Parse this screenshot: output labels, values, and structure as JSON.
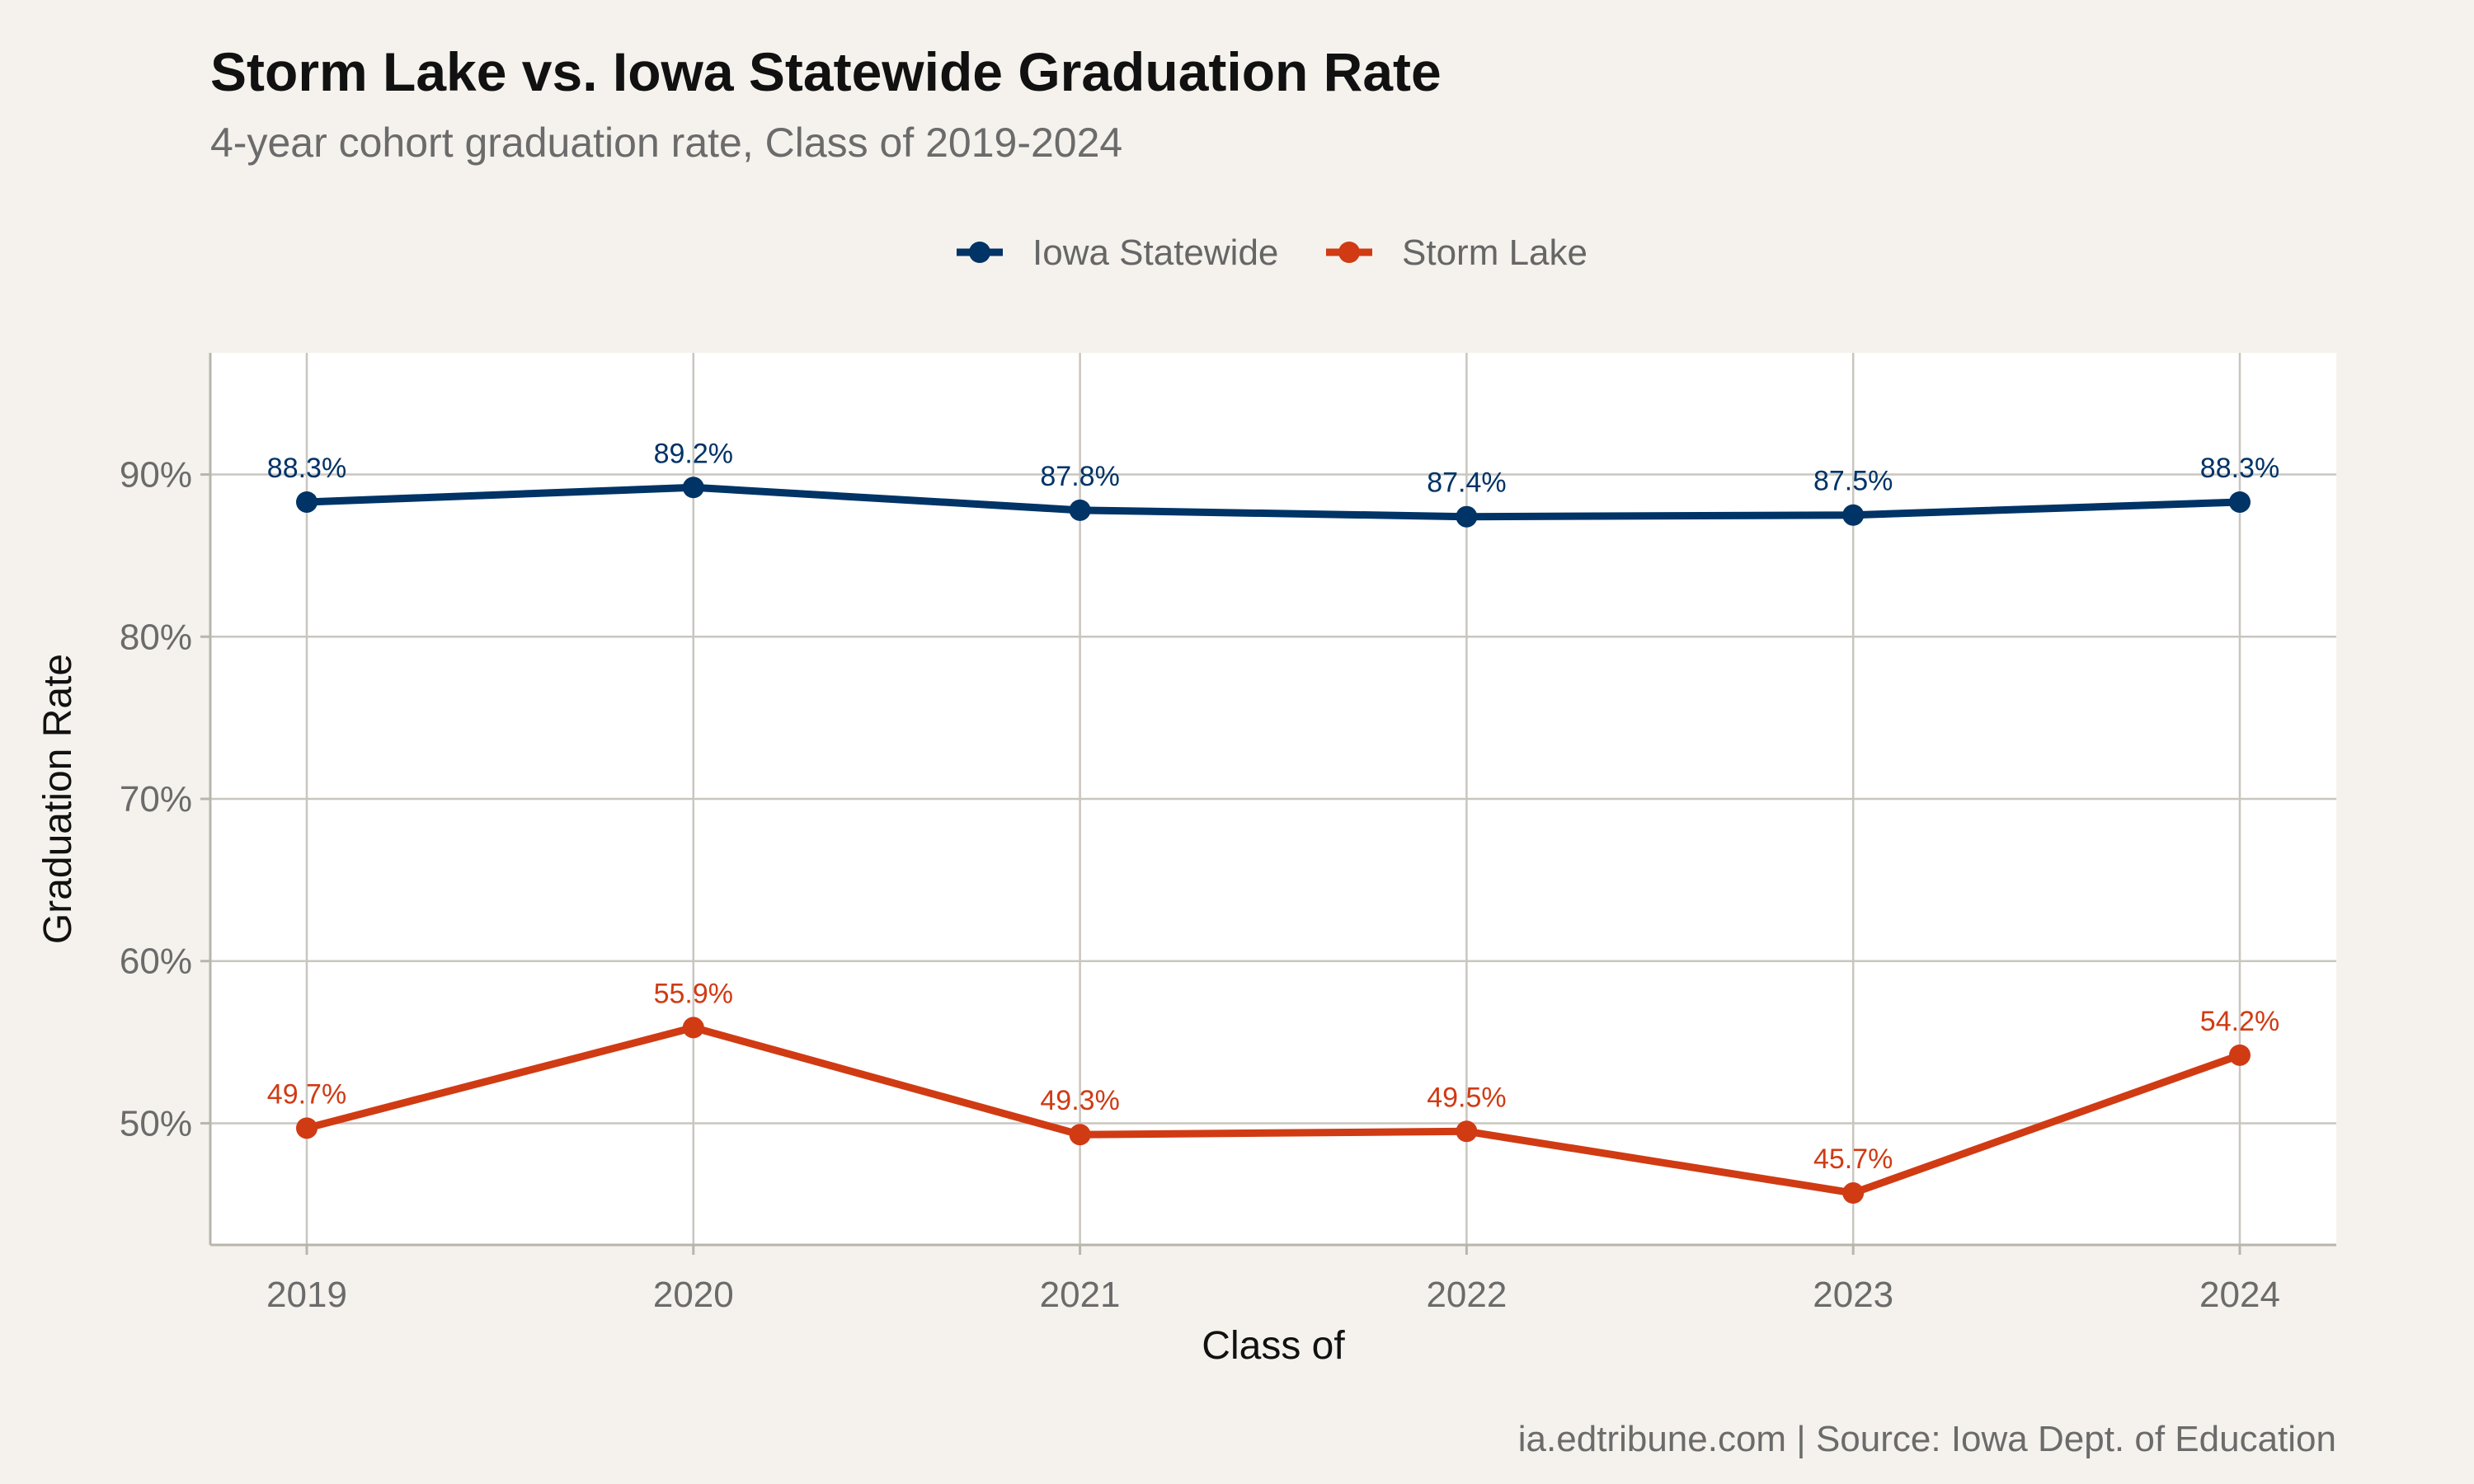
{
  "chart_data": {
    "type": "line",
    "title": "Storm Lake vs. Iowa Statewide Graduation Rate",
    "subtitle": "4-year cohort graduation rate, Class of 2019-2024",
    "xlabel": "Class of",
    "ylabel": "Graduation Rate",
    "categories": [
      "2019",
      "2020",
      "2021",
      "2022",
      "2023",
      "2024"
    ],
    "y_ticks": [
      {
        "value": 50,
        "label": "50%"
      },
      {
        "value": 60,
        "label": "60%"
      },
      {
        "value": 70,
        "label": "70%"
      },
      {
        "value": 80,
        "label": "80%"
      },
      {
        "value": 90,
        "label": "90%"
      }
    ],
    "ylim": [
      42.5,
      97.5
    ],
    "grid": true,
    "legend_position": "top",
    "series": [
      {
        "name": "Iowa Statewide",
        "color": "#003366",
        "values": [
          88.3,
          89.2,
          87.8,
          87.4,
          87.5,
          88.3
        ],
        "labels": [
          "88.3%",
          "89.2%",
          "87.8%",
          "87.4%",
          "87.5%",
          "88.3%"
        ]
      },
      {
        "name": "Storm Lake",
        "color": "#d03b14",
        "values": [
          49.7,
          55.9,
          49.3,
          49.5,
          45.7,
          54.2
        ],
        "labels": [
          "49.7%",
          "55.9%",
          "49.3%",
          "49.5%",
          "45.7%",
          "54.2%"
        ]
      }
    ],
    "caption": "ia.edtribune.com | Source: Iowa Dept. of Education"
  }
}
